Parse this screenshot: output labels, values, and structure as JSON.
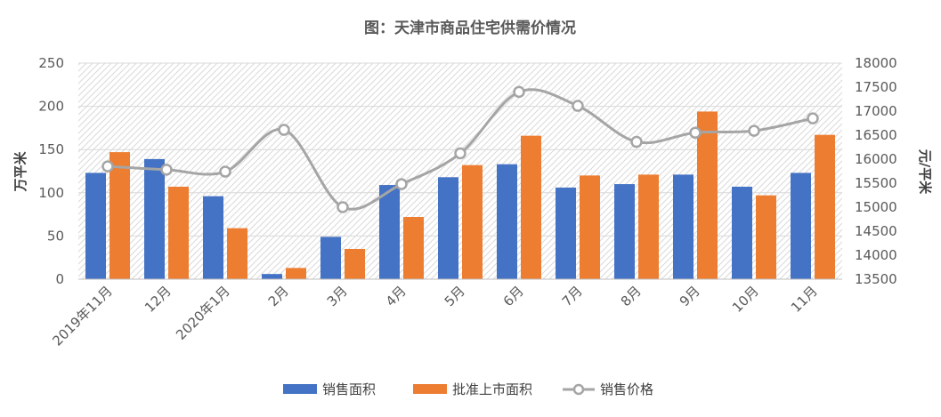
{
  "chart_data": {
    "type": "bar",
    "title": "图：天津市商品住宅供需价情况",
    "categories": [
      "2019年11月",
      "12月",
      "2020年1月",
      "2月",
      "3月",
      "4月",
      "5月",
      "6月",
      "7月",
      "8月",
      "9月",
      "10月",
      "11月"
    ],
    "series": [
      {
        "name": "销售面积",
        "type": "bar",
        "axis": "left",
        "color": "#4472C4",
        "values": [
          123,
          139,
          96,
          6,
          49,
          109,
          118,
          133,
          106,
          110,
          121,
          107,
          123
        ]
      },
      {
        "name": "批准上市面积",
        "type": "bar",
        "axis": "left",
        "color": "#ED7D31",
        "values": [
          147,
          107,
          59,
          13,
          35,
          72,
          132,
          166,
          120,
          121,
          194,
          97,
          167
        ]
      },
      {
        "name": "销售价格",
        "type": "line",
        "axis": "right",
        "color": "#A5A5A5",
        "values": [
          15850,
          15780,
          15740,
          16610,
          15000,
          15480,
          16120,
          17400,
          17110,
          16360,
          16550,
          16590,
          16850
        ]
      }
    ],
    "ylabel": "万平米",
    "ylim": [
      0,
      250
    ],
    "yticks": [
      0,
      50,
      100,
      150,
      200,
      250
    ],
    "y2label": "元/平米",
    "y2lim": [
      13500,
      18000
    ],
    "y2ticks": [
      13500,
      14000,
      14500,
      15000,
      15500,
      16000,
      16500,
      17000,
      17500,
      18000
    ],
    "grid": true,
    "legend_position": "bottom"
  }
}
